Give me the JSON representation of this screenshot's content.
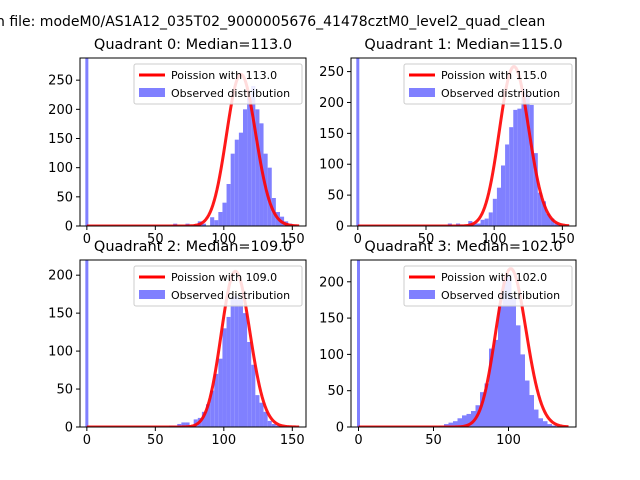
{
  "suptitle": "n file: modeM0/AS1A12_035T02_9000005676_41478cztM0_level2_quad_clean",
  "legend_observed": "Observed distribution",
  "colors": {
    "hist": "#8080ff",
    "fit": "#ff0000",
    "axis": "#000000"
  },
  "chart_data": [
    {
      "type": "bar+line",
      "title": "Quadrant 0: Median=113.0",
      "fit_label": "Poission with 113.0",
      "mean": 113,
      "peak": 260,
      "xlim": [
        -5,
        160
      ],
      "ylim": [
        0,
        288
      ],
      "xticks": [
        0,
        50,
        100,
        150
      ],
      "yticks": [
        0,
        50,
        100,
        150,
        200,
        250
      ],
      "bin_width": 3,
      "zero_bar": 288,
      "bins_start": 60,
      "values": [
        0,
        4,
        0,
        0,
        4,
        0,
        2,
        8,
        4,
        0,
        15,
        10,
        24,
        40,
        72,
        124,
        148,
        160,
        200,
        220,
        240,
        200,
        176,
        124,
        100,
        48,
        24,
        16,
        8,
        4,
        2
      ]
    },
    {
      "type": "bar+line",
      "title": "Quadrant 1: Median=115.0",
      "fit_label": "Poission with 115.0",
      "mean": 115,
      "peak": 258,
      "xlim": [
        -5,
        160
      ],
      "ylim": [
        0,
        272
      ],
      "xticks": [
        0,
        50,
        100,
        150
      ],
      "yticks": [
        0,
        50,
        100,
        150,
        200,
        250
      ],
      "bin_width": 3,
      "zero_bar": 272,
      "bins_start": 66,
      "values": [
        4,
        0,
        4,
        2,
        0,
        8,
        4,
        4,
        10,
        12,
        22,
        44,
        62,
        98,
        132,
        160,
        188,
        190,
        222,
        214,
        196,
        118,
        54,
        40,
        20,
        12,
        4,
        2
      ]
    },
    {
      "type": "bar+line",
      "title": "Quadrant 2: Median=109.0",
      "fit_label": "Poission with 109.0",
      "mean": 109,
      "peak": 205,
      "xlim": [
        -5,
        160
      ],
      "ylim": [
        0,
        220
      ],
      "xticks": [
        0,
        50,
        100,
        150
      ],
      "yticks": [
        0,
        50,
        100,
        150,
        200
      ],
      "bin_width": 3,
      "zero_bar": 220,
      "bins_start": 60,
      "values": [
        2,
        2,
        4,
        6,
        6,
        2,
        10,
        12,
        20,
        30,
        48,
        70,
        90,
        130,
        145,
        172,
        172,
        168,
        150,
        112,
        82,
        42,
        32,
        20,
        8,
        4,
        2,
        1
      ]
    },
    {
      "type": "bar+line",
      "title": "Quadrant 3: Median=102.0",
      "fit_label": "Poission with 102.0",
      "mean": 102,
      "peak": 218,
      "xlim": [
        -5,
        145
      ],
      "ylim": [
        0,
        230
      ],
      "xticks": [
        0,
        50,
        100
      ],
      "yticks": [
        0,
        50,
        100,
        150,
        200
      ],
      "bin_width": 3,
      "zero_bar": 230,
      "bins_start": 54,
      "values": [
        2,
        4,
        6,
        8,
        12,
        16,
        18,
        22,
        30,
        48,
        60,
        108,
        120,
        168,
        205,
        210,
        178,
        140,
        100,
        64,
        44,
        24,
        12,
        8,
        4,
        2
      ]
    }
  ]
}
